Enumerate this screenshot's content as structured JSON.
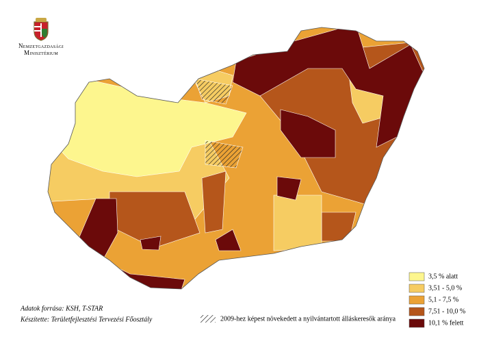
{
  "logo": {
    "line1": "Nemzetgazdasági",
    "line2": "Minisztérium"
  },
  "legend": {
    "items": [
      {
        "label": "3,5 % alatt",
        "color": "#fdf68e"
      },
      {
        "label": "3,51 - 5,0 %",
        "color": "#f6cc62"
      },
      {
        "label": "5,1 - 7,5 %",
        "color": "#eba235"
      },
      {
        "label": "7,51 - 10,0 %",
        "color": "#b5561b"
      },
      {
        "label": "10,1 % felett",
        "color": "#6b0a0a"
      }
    ]
  },
  "source": "Adatok forrása: KSH, T-STAR",
  "author": "Készítette: Területfejlesztési Tervezési Főosztály",
  "hatch_label": "2009-hez képest növekedett a nyilvántartott álláskeresők aránya"
}
